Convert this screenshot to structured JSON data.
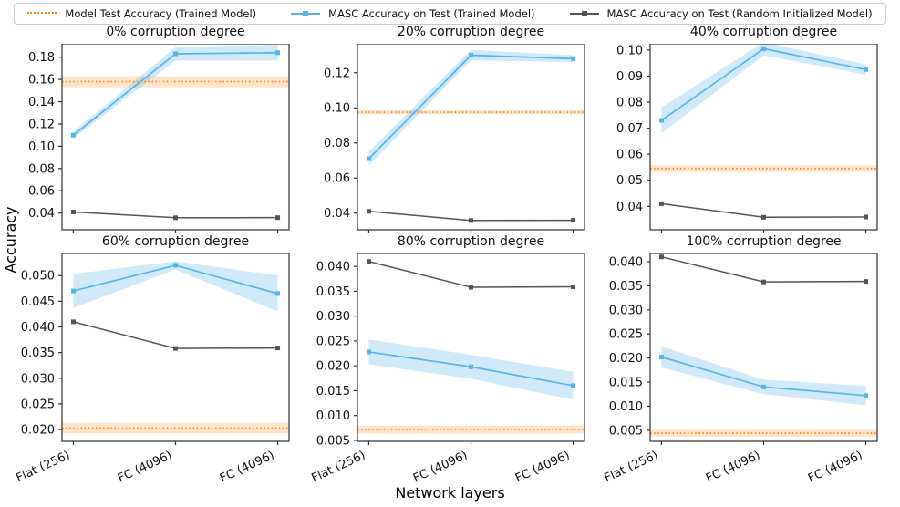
{
  "figure": {
    "ylabel": "Accuracy",
    "xlabel": "Network layers"
  },
  "colors": {
    "model_test": "#ff7f0e",
    "model_test_band": "rgba(255,127,14,0.22)",
    "masc_trained": "#56b4e9",
    "masc_trained_band": "rgba(86,180,233,0.28)",
    "masc_random": "#545454",
    "axes_edge": "#2e2e2e",
    "tick_text": "#111111"
  },
  "legend": {
    "items": [
      {
        "label": "Model Test Accuracy (Trained Model)",
        "series": "model_test",
        "style": "dotted"
      },
      {
        "label": "MASC Accuracy on Test (Trained Model)",
        "series": "masc_trained",
        "style": "line-marker"
      },
      {
        "label": "MASC Accuracy on Test (Random Initialized Model)",
        "series": "masc_random",
        "style": "line-marker"
      }
    ]
  },
  "chart_data": [
    {
      "type": "line",
      "title": "0% corruption degree",
      "categories": [
        "Flat (256)",
        "FC (4096)",
        "FC (4096)"
      ],
      "ylim": [
        0.025,
        0.192
      ],
      "yticks": [
        0.04,
        0.06,
        0.08,
        0.1,
        0.12,
        0.14,
        0.16,
        0.18
      ],
      "ytick_decimals": 2,
      "model_test_accuracy": 0.158,
      "model_test_band": 0.005,
      "series": [
        {
          "name": "MASC Accuracy on Test (Trained Model)",
          "values": [
            0.11,
            0.183,
            0.184
          ],
          "band": [
            0.003,
            0.006,
            0.007
          ]
        },
        {
          "name": "MASC Accuracy on Test (Random Initialized Model)",
          "values": [
            0.041,
            0.0358,
            0.0359
          ]
        }
      ]
    },
    {
      "type": "line",
      "title": "20% corruption degree",
      "categories": [
        "Flat (256)",
        "FC (4096)",
        "FC (4096)"
      ],
      "ylim": [
        0.0305,
        0.1365
      ],
      "yticks": [
        0.04,
        0.06,
        0.08,
        0.1,
        0.12
      ],
      "ytick_decimals": 2,
      "model_test_accuracy": 0.0975,
      "model_test_band": 0.001,
      "series": [
        {
          "name": "MASC Accuracy on Test (Trained Model)",
          "values": [
            0.071,
            0.13,
            0.128
          ],
          "band": [
            0.004,
            0.003,
            0.002
          ]
        },
        {
          "name": "MASC Accuracy on Test (Random Initialized Model)",
          "values": [
            0.041,
            0.0358,
            0.0359
          ]
        }
      ]
    },
    {
      "type": "line",
      "title": "40% corruption degree",
      "categories": [
        "Flat (256)",
        "FC (4096)",
        "FC (4096)"
      ],
      "ylim": [
        0.031,
        0.1024
      ],
      "yticks": [
        0.04,
        0.05,
        0.06,
        0.07,
        0.08,
        0.09,
        0.1
      ],
      "ytick_decimals": 2,
      "model_test_accuracy": 0.0545,
      "model_test_band": 0.0013,
      "series": [
        {
          "name": "MASC Accuracy on Test (Trained Model)",
          "values": [
            0.073,
            0.1005,
            0.0925
          ],
          "band": [
            0.005,
            0.0025,
            0.002
          ]
        },
        {
          "name": "MASC Accuracy on Test (Random Initialized Model)",
          "values": [
            0.041,
            0.0358,
            0.0359
          ]
        }
      ]
    },
    {
      "type": "line",
      "title": "60% corruption degree",
      "categories": [
        "Flat (256)",
        "FC (4096)",
        "FC (4096)"
      ],
      "ylim": [
        0.0177,
        0.0543
      ],
      "yticks": [
        0.02,
        0.025,
        0.03,
        0.035,
        0.04,
        0.045,
        0.05
      ],
      "ytick_decimals": 3,
      "model_test_accuracy": 0.0203,
      "model_test_band": 0.001,
      "series": [
        {
          "name": "MASC Accuracy on Test (Trained Model)",
          "values": [
            0.047,
            0.052,
            0.0465
          ],
          "band": [
            0.0033,
            0.0008,
            0.0035
          ]
        },
        {
          "name": "MASC Accuracy on Test (Random Initialized Model)",
          "values": [
            0.041,
            0.0358,
            0.0359
          ]
        }
      ]
    },
    {
      "type": "line",
      "title": "80% corruption degree",
      "categories": [
        "Flat (256)",
        "FC (4096)",
        "FC (4096)"
      ],
      "ylim": [
        0.0048,
        0.0426
      ],
      "yticks": [
        0.005,
        0.01,
        0.015,
        0.02,
        0.025,
        0.03,
        0.035,
        0.04
      ],
      "ytick_decimals": 3,
      "model_test_accuracy": 0.0072,
      "model_test_band": 0.0008,
      "series": [
        {
          "name": "MASC Accuracy on Test (Trained Model)",
          "values": [
            0.0228,
            0.0198,
            0.016
          ],
          "band": [
            0.0025,
            0.0024,
            0.0028
          ]
        },
        {
          "name": "MASC Accuracy on Test (Random Initialized Model)",
          "values": [
            0.041,
            0.0358,
            0.0359
          ]
        }
      ]
    },
    {
      "type": "line",
      "title": "100% corruption degree",
      "categories": [
        "Flat (256)",
        "FC (4096)",
        "FC (4096)"
      ],
      "ylim": [
        0.0027,
        0.0417
      ],
      "yticks": [
        0.005,
        0.01,
        0.015,
        0.02,
        0.025,
        0.03,
        0.035,
        0.04
      ],
      "ytick_decimals": 3,
      "model_test_accuracy": 0.0044,
      "model_test_band": 0.0007,
      "series": [
        {
          "name": "MASC Accuracy on Test (Trained Model)",
          "values": [
            0.0202,
            0.014,
            0.0122
          ],
          "band": [
            0.0022,
            0.0015,
            0.002
          ]
        },
        {
          "name": "MASC Accuracy on Test (Random Initialized Model)",
          "values": [
            0.041,
            0.0358,
            0.0359
          ]
        }
      ]
    }
  ]
}
